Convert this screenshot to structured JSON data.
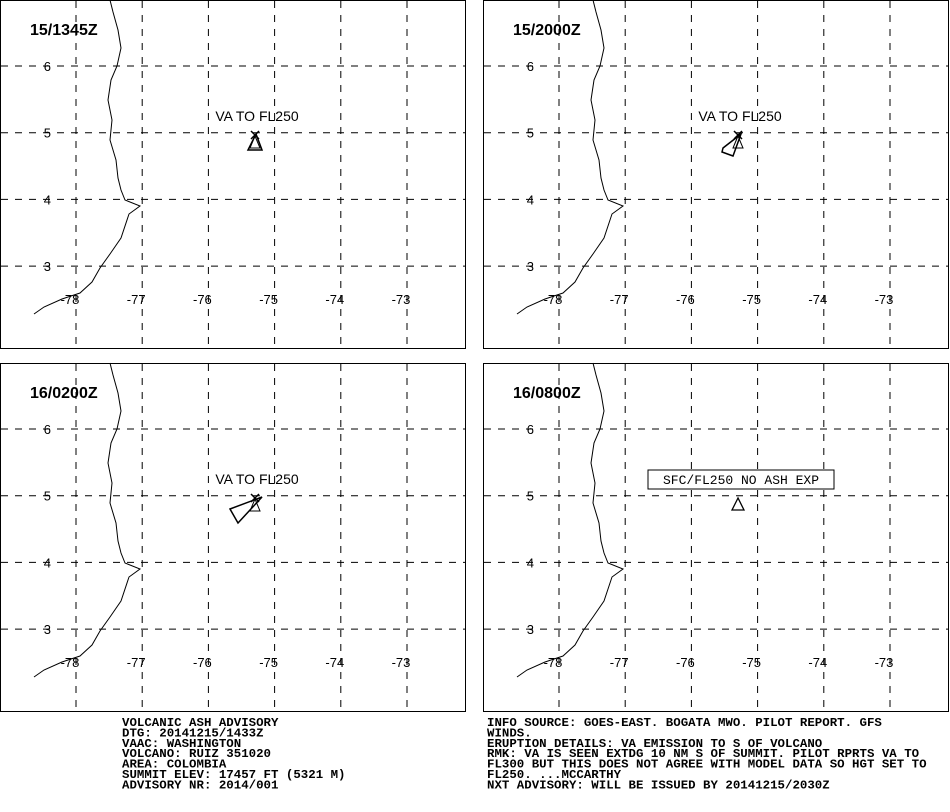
{
  "panels": [
    {
      "time": "15/1345Z",
      "label": "VA TO FL250"
    },
    {
      "time": "15/2000Z",
      "label": "VA TO FL250"
    },
    {
      "time": "16/0200Z",
      "label": "VA TO FL250"
    },
    {
      "time": "16/0800Z",
      "label": "SFC/FL250 NO ASH EXP"
    }
  ],
  "grid": {
    "lat": [
      3,
      4,
      5,
      6
    ],
    "lon": [
      -78,
      -77,
      -76,
      -75,
      -74,
      -73
    ]
  },
  "advisory_left": [
    "VOLCANIC ASH ADVISORY",
    "DTG: 20141215/1433Z",
    "VAAC: WASHINGTON",
    "VOLCANO: RUIZ 351020",
    "AREA: COLOMBIA",
    "SUMMIT ELEV: 17457 FT (5321 M)",
    "ADVISORY NR: 2014/001"
  ],
  "advisory_right": [
    "INFO SOURCE: GOES-EAST. BOGATA MWO. PILOT REPORT. GFS",
    "WINDS.",
    "ERUPTION DETAILS: VA EMISSION TO S OF VOLCANO",
    "RMK: VA IS SEEN EXTDG 10 NM S OF SUMMIT. PILOT RPRTS VA TO",
    "FL300 BUT THIS DOES NOT AGREE WITH MODEL DATA SO HGT SET TO",
    "FL250. ...MCCARTHY",
    "NXT ADVISORY: WILL BE ISSUED BY 20141215/2030Z"
  ]
}
